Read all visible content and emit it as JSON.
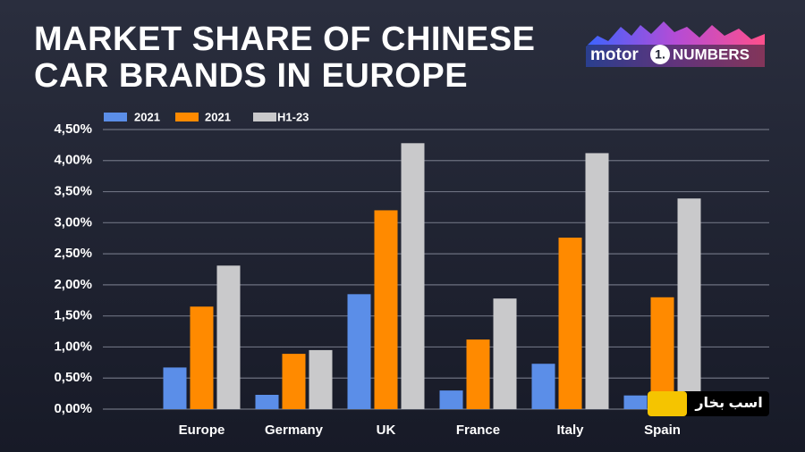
{
  "chart_data": {
    "type": "bar",
    "title": [
      "MARKET SHARE OF CHINESE",
      "CAR BRANDS IN EUROPE"
    ],
    "logo": [
      "motor",
      "1.",
      "NUMBERS"
    ],
    "watermark": "اسب بخار",
    "categories": [
      "Europe",
      "Germany",
      "UK",
      "France",
      "Italy",
      "Spain"
    ],
    "series": [
      {
        "name": "2021",
        "color": "#5b8ee8",
        "values": [
          0.67,
          0.23,
          1.85,
          0.3,
          0.73,
          0.22
        ]
      },
      {
        "name": "2021",
        "color": "#ff8a00",
        "values": [
          1.65,
          0.89,
          3.2,
          1.12,
          2.76,
          1.8
        ]
      },
      {
        "name": "H1-23",
        "color": "#c9c9cb",
        "values": [
          2.31,
          0.95,
          4.28,
          1.78,
          4.12,
          3.39
        ]
      }
    ],
    "ylim": [
      0,
      4.5
    ],
    "yticks": [
      {
        "value": 0,
        "label": "0,00%"
      },
      {
        "value": 0.5,
        "label": "0,50%"
      },
      {
        "value": 1,
        "label": "1,00%"
      },
      {
        "value": 1.5,
        "label": "1,50%"
      },
      {
        "value": 2,
        "label": "2,00%"
      },
      {
        "value": 2.5,
        "label": "2,50%"
      },
      {
        "value": 3,
        "label": "3,00%"
      },
      {
        "value": 3.5,
        "label": "3,50%"
      },
      {
        "value": 4,
        "label": "4,00%"
      },
      {
        "value": 4.5,
        "label": "4,50%"
      }
    ],
    "grid": true,
    "legend": "top"
  }
}
